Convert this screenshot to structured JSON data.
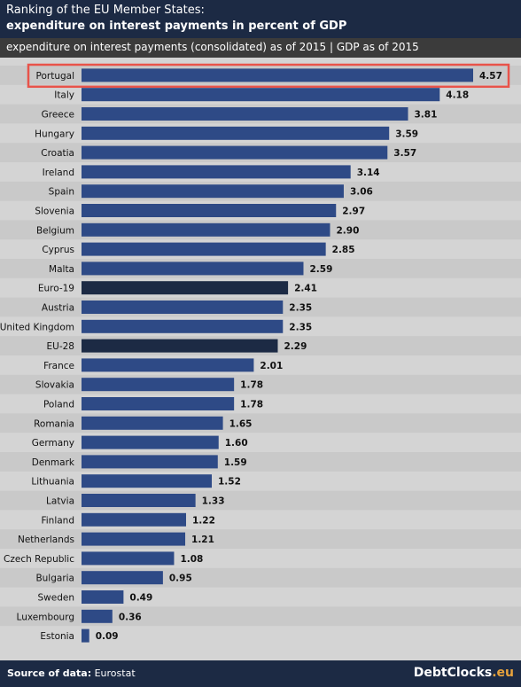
{
  "header": {
    "title_line1": "Ranking of the EU Member States:",
    "title_line2": "expenditure on interest payments in percent of GDP",
    "subtitle": "expenditure on interest payments (consolidated) as of 2015  |  GDP as of 2015"
  },
  "footer": {
    "source_label": "Source of data:",
    "source_value": "Eurostat",
    "brand_name": "DebtClocks",
    "brand_tld": ".eu"
  },
  "colors": {
    "bar": "#2e4a86",
    "bar_aggregate": "#1c2a44",
    "highlight_border": "#e8534a",
    "row_band": "#c9c9c9",
    "brand_accent": "#e8a33c"
  },
  "chart_data": {
    "type": "bar",
    "orientation": "horizontal",
    "title": "Ranking of the EU Member States: expenditure on interest payments in percent of GDP",
    "subtitle": "expenditure on interest payments (consolidated) as of 2015  |  GDP as of 2015",
    "categories": [
      "Portugal",
      "Italy",
      "Greece",
      "Hungary",
      "Croatia",
      "Ireland",
      "Spain",
      "Slovenia",
      "Belgium",
      "Cyprus",
      "Malta",
      "Euro-19",
      "Austria",
      "United Kingdom",
      "EU-28",
      "France",
      "Slovakia",
      "Poland",
      "Romania",
      "Germany",
      "Denmark",
      "Lithuania",
      "Latvia",
      "Finland",
      "Netherlands",
      "Czech Republic",
      "Bulgaria",
      "Sweden",
      "Luxembourg",
      "Estonia"
    ],
    "values": [
      4.57,
      4.18,
      3.81,
      3.59,
      3.57,
      3.14,
      3.06,
      2.97,
      2.9,
      2.85,
      2.59,
      2.41,
      2.35,
      2.35,
      2.29,
      2.01,
      1.78,
      1.78,
      1.65,
      1.6,
      1.59,
      1.52,
      1.33,
      1.22,
      1.21,
      1.08,
      0.95,
      0.49,
      0.36,
      0.09
    ],
    "value_labels": [
      "4.57",
      "4.18",
      "3.81",
      "3.59",
      "3.57",
      "3.14",
      "3.06",
      "2.97",
      "2.90",
      "2.85",
      "2.59",
      "2.41",
      "2.35",
      "2.35",
      "2.29",
      "2.01",
      "1.78",
      "1.78",
      "1.65",
      "1.60",
      "1.59",
      "1.52",
      "1.33",
      "1.22",
      "1.21",
      "1.08",
      "0.95",
      "0.49",
      "0.36",
      "0.09"
    ],
    "aggregates": [
      "Euro-19",
      "EU-28"
    ],
    "highlighted": "Portugal",
    "xlim": [
      0,
      4.57
    ],
    "grid": false,
    "legend": "none"
  }
}
